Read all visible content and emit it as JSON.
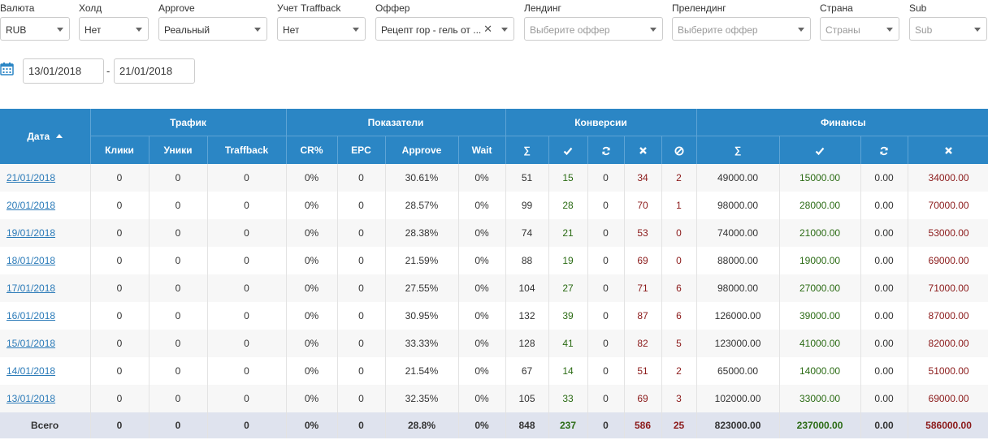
{
  "filters": [
    {
      "label": "Валюта",
      "value": "RUB",
      "placeholder": false,
      "clear": false
    },
    {
      "label": "Холд",
      "value": "Нет",
      "placeholder": false,
      "clear": false
    },
    {
      "label": "Approve",
      "value": "Реальный",
      "placeholder": false,
      "clear": false
    },
    {
      "label": "Учет Traffback",
      "value": "Нет",
      "placeholder": false,
      "clear": false
    },
    {
      "label": "Оффер",
      "value": "Рецепт гор - гель от ...",
      "placeholder": false,
      "clear": true
    },
    {
      "label": "Лендинг",
      "value": "Выберите оффер",
      "placeholder": true,
      "clear": false
    },
    {
      "label": "Прелендинг",
      "value": "Выберите оффер",
      "placeholder": true,
      "clear": false
    },
    {
      "label": "Страна",
      "value": "Страны",
      "placeholder": true,
      "clear": false
    },
    {
      "label": "Sub",
      "value": "Sub",
      "placeholder": true,
      "clear": false
    }
  ],
  "date_range": {
    "from": "13/01/2018",
    "separator": "-",
    "to": "21/01/2018"
  },
  "table": {
    "date_header": "Дата",
    "groups": {
      "traffic": "Трафик",
      "metrics": "Показатели",
      "conversions": "Конверсии",
      "finance": "Финансы"
    },
    "subheaders": {
      "clicks": "Клики",
      "uniques": "Уники",
      "traffback": "Traffback",
      "cr": "CR%",
      "epc": "EPC",
      "approve": "Approve",
      "wait": "Wait",
      "sum": "∑"
    },
    "rows": [
      {
        "date": "21/01/2018",
        "clicks": "0",
        "uniques": "0",
        "traffback": "0",
        "cr": "0%",
        "epc": "0",
        "approve": "30.61%",
        "wait": "0%",
        "c_sum": "51",
        "c_ok": "15",
        "c_hold": "0",
        "c_rej": "34",
        "c_trash": "2",
        "f_sum": "49000.00",
        "f_ok": "15000.00",
        "f_hold": "0.00",
        "f_rej": "34000.00"
      },
      {
        "date": "20/01/2018",
        "clicks": "0",
        "uniques": "0",
        "traffback": "0",
        "cr": "0%",
        "epc": "0",
        "approve": "28.57%",
        "wait": "0%",
        "c_sum": "99",
        "c_ok": "28",
        "c_hold": "0",
        "c_rej": "70",
        "c_trash": "1",
        "f_sum": "98000.00",
        "f_ok": "28000.00",
        "f_hold": "0.00",
        "f_rej": "70000.00"
      },
      {
        "date": "19/01/2018",
        "clicks": "0",
        "uniques": "0",
        "traffback": "0",
        "cr": "0%",
        "epc": "0",
        "approve": "28.38%",
        "wait": "0%",
        "c_sum": "74",
        "c_ok": "21",
        "c_hold": "0",
        "c_rej": "53",
        "c_trash": "0",
        "f_sum": "74000.00",
        "f_ok": "21000.00",
        "f_hold": "0.00",
        "f_rej": "53000.00"
      },
      {
        "date": "18/01/2018",
        "clicks": "0",
        "uniques": "0",
        "traffback": "0",
        "cr": "0%",
        "epc": "0",
        "approve": "21.59%",
        "wait": "0%",
        "c_sum": "88",
        "c_ok": "19",
        "c_hold": "0",
        "c_rej": "69",
        "c_trash": "0",
        "f_sum": "88000.00",
        "f_ok": "19000.00",
        "f_hold": "0.00",
        "f_rej": "69000.00"
      },
      {
        "date": "17/01/2018",
        "clicks": "0",
        "uniques": "0",
        "traffback": "0",
        "cr": "0%",
        "epc": "0",
        "approve": "27.55%",
        "wait": "0%",
        "c_sum": "104",
        "c_ok": "27",
        "c_hold": "0",
        "c_rej": "71",
        "c_trash": "6",
        "f_sum": "98000.00",
        "f_ok": "27000.00",
        "f_hold": "0.00",
        "f_rej": "71000.00"
      },
      {
        "date": "16/01/2018",
        "clicks": "0",
        "uniques": "0",
        "traffback": "0",
        "cr": "0%",
        "epc": "0",
        "approve": "30.95%",
        "wait": "0%",
        "c_sum": "132",
        "c_ok": "39",
        "c_hold": "0",
        "c_rej": "87",
        "c_trash": "6",
        "f_sum": "126000.00",
        "f_ok": "39000.00",
        "f_hold": "0.00",
        "f_rej": "87000.00"
      },
      {
        "date": "15/01/2018",
        "clicks": "0",
        "uniques": "0",
        "traffback": "0",
        "cr": "0%",
        "epc": "0",
        "approve": "33.33%",
        "wait": "0%",
        "c_sum": "128",
        "c_ok": "41",
        "c_hold": "0",
        "c_rej": "82",
        "c_trash": "5",
        "f_sum": "123000.00",
        "f_ok": "41000.00",
        "f_hold": "0.00",
        "f_rej": "82000.00"
      },
      {
        "date": "14/01/2018",
        "clicks": "0",
        "uniques": "0",
        "traffback": "0",
        "cr": "0%",
        "epc": "0",
        "approve": "21.54%",
        "wait": "0%",
        "c_sum": "67",
        "c_ok": "14",
        "c_hold": "0",
        "c_rej": "51",
        "c_trash": "2",
        "f_sum": "65000.00",
        "f_ok": "14000.00",
        "f_hold": "0.00",
        "f_rej": "51000.00"
      },
      {
        "date": "13/01/2018",
        "clicks": "0",
        "uniques": "0",
        "traffback": "0",
        "cr": "0%",
        "epc": "0",
        "approve": "32.35%",
        "wait": "0%",
        "c_sum": "105",
        "c_ok": "33",
        "c_hold": "0",
        "c_rej": "69",
        "c_trash": "3",
        "f_sum": "102000.00",
        "f_ok": "33000.00",
        "f_hold": "0.00",
        "f_rej": "69000.00"
      }
    ],
    "total": {
      "label": "Всего",
      "clicks": "0",
      "uniques": "0",
      "traffback": "0",
      "cr": "0%",
      "epc": "0",
      "approve": "28.8%",
      "wait": "0%",
      "c_sum": "848",
      "c_ok": "237",
      "c_hold": "0",
      "c_rej": "586",
      "c_trash": "25",
      "f_sum": "823000.00",
      "f_ok": "237000.00",
      "f_hold": "0.00",
      "f_rej": "586000.00"
    }
  },
  "colors": {
    "header": "#2b86c5",
    "approved": "#2b6b14",
    "rejected": "#8b1a1a",
    "link": "#2a7ab8",
    "total_row": "#dfe3ee"
  },
  "icons": {
    "calendar": "calendar-icon",
    "approved": "check-icon",
    "hold": "refresh-icon",
    "rejected": "times-icon",
    "trash": "ban-icon",
    "sort": "sort-asc-icon"
  }
}
